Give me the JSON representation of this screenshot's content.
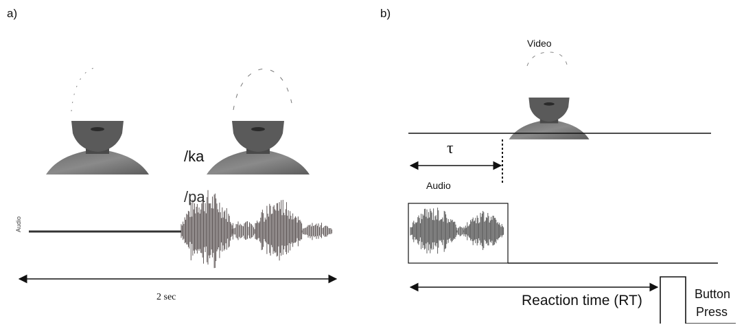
{
  "panel_a": {
    "label": "a)",
    "syllable_video": "/ka",
    "syllable_audio": "/pa",
    "waveform_axis_label": "Audio",
    "duration_label": "2 sec"
  },
  "panel_b": {
    "label": "b)",
    "video_label": "Video",
    "tau_label": "τ",
    "audio_label": "Audio",
    "rt_label": "Reaction time (RT)",
    "button_label_line1": "Button",
    "button_label_line2": "Press"
  },
  "colors": {
    "ink": "#111111",
    "skin": "#5a5a5a",
    "waveform": "#3a3030"
  },
  "icons": [
    "face-image",
    "audio-waveform"
  ]
}
